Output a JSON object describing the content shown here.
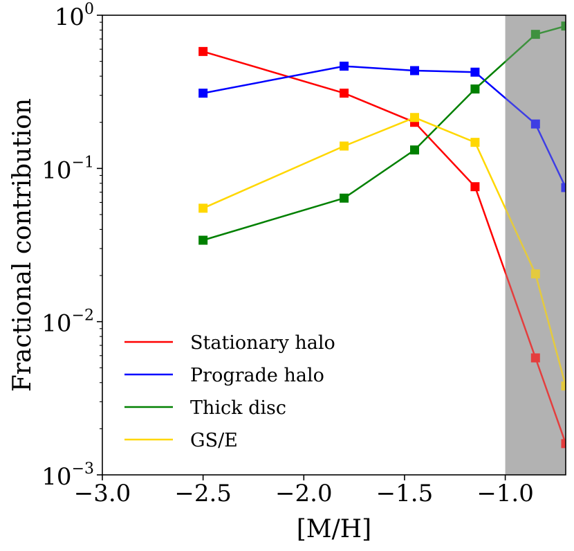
{
  "chart_data": {
    "type": "line",
    "title": "",
    "xlabel": "[M/H]",
    "ylabel": "Fractional contribution",
    "xlim": [
      -3.0,
      -0.7
    ],
    "ylim": [
      0.001,
      1.0
    ],
    "yscale": "log",
    "xticks": [
      {
        "value": -3.0,
        "label": "−3.0"
      },
      {
        "value": -2.5,
        "label": "−2.5"
      },
      {
        "value": -2.0,
        "label": "−2.0"
      },
      {
        "value": -1.5,
        "label": "−1.5"
      },
      {
        "value": -1.0,
        "label": "−1.0"
      }
    ],
    "yticks": [
      {
        "value": 1.0,
        "base": "10",
        "exp": "0"
      },
      {
        "value": 0.1,
        "base": "10",
        "exp": "−1"
      },
      {
        "value": 0.01,
        "base": "10",
        "exp": "−2"
      },
      {
        "value": 0.001,
        "base": "10",
        "exp": "−3"
      }
    ],
    "shaded_region": {
      "x_from": -1.0,
      "x_to": -0.7,
      "color": "#b3b3b3"
    },
    "legend": {
      "placement": "lower-left"
    },
    "x": [
      -2.5,
      -1.8,
      -1.45,
      -1.15,
      -0.85,
      -0.7
    ],
    "series": [
      {
        "name": "Stationary halo",
        "color": "#ff0000",
        "values": [
          0.58,
          0.31,
          0.2,
          0.076,
          0.0058,
          0.0016
        ]
      },
      {
        "name": "Prograde halo",
        "color": "#0000ff",
        "values": [
          0.31,
          0.465,
          0.435,
          0.425,
          0.195,
          0.075
        ]
      },
      {
        "name": "Thick disc",
        "color": "#008000",
        "values": [
          0.034,
          0.064,
          0.132,
          0.33,
          0.75,
          0.85
        ]
      },
      {
        "name": "GS/E",
        "color": "#ffd700",
        "values": [
          0.055,
          0.14,
          0.215,
          0.148,
          0.0205,
          0.0038
        ]
      }
    ]
  }
}
